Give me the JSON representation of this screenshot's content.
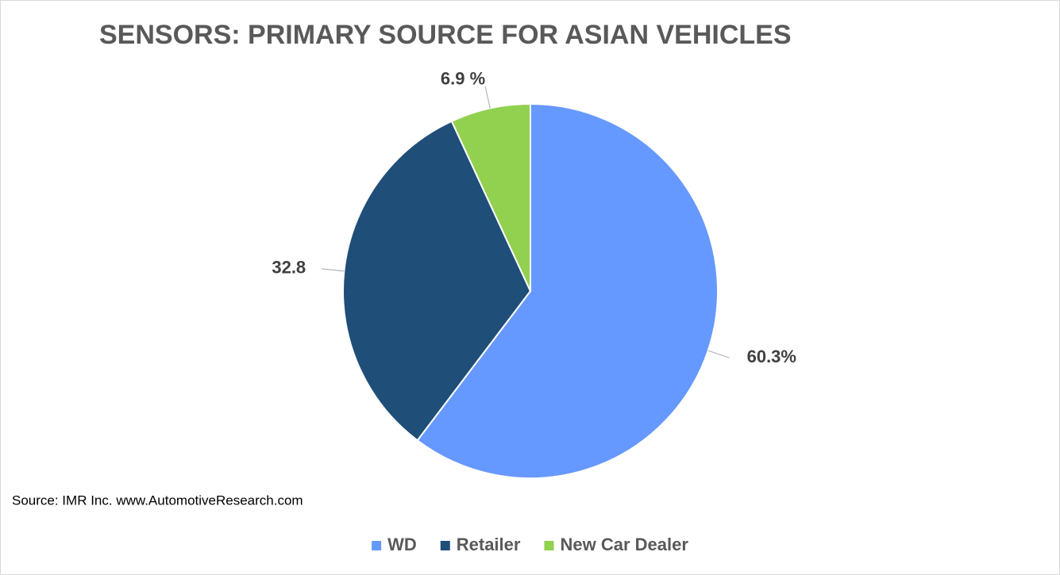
{
  "chart_data": {
    "type": "pie",
    "title": "SENSORS: PRIMARY SOURCE FOR ASIAN VEHICLES",
    "categories": [
      "WD",
      "Retailer",
      "New Car Dealer"
    ],
    "values": [
      60.3,
      32.8,
      6.9
    ],
    "value_labels": [
      "60.3%",
      "32.8",
      "6.9 %"
    ],
    "colors": [
      "#6699ff",
      "#1f4e79",
      "#92d050"
    ],
    "source": "Source: IMR Inc. www.AutomotiveResearch.com",
    "legend": "bottom"
  }
}
